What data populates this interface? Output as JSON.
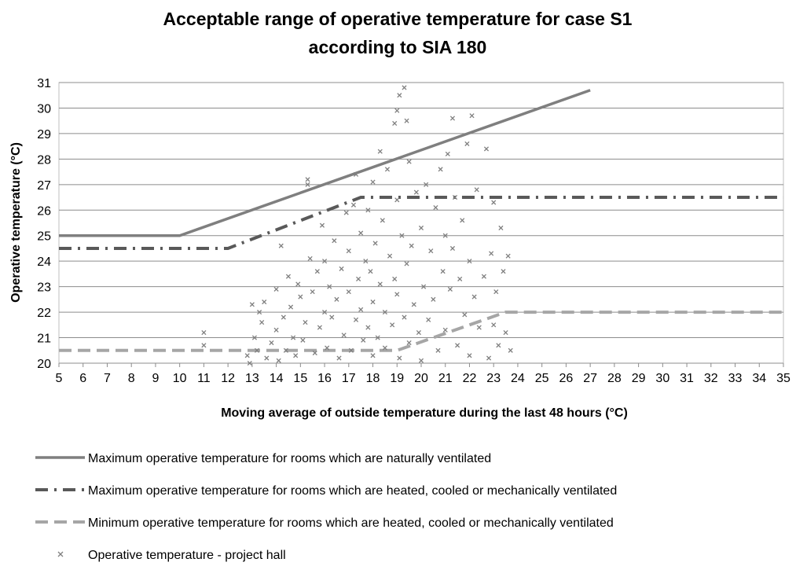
{
  "chart_data": {
    "type": "scatter",
    "title": [
      "Acceptable range of operative temperature for case S1",
      "according to SIA 180"
    ],
    "x_label": "Moving average of outside temperature during the last 48 hours (°C)",
    "y_label": "Operative temperature (°C)",
    "xlim": [
      5,
      35
    ],
    "ylim": [
      20,
      31
    ],
    "xticks": [
      5,
      6,
      7,
      8,
      9,
      10,
      11,
      12,
      13,
      14,
      15,
      16,
      17,
      18,
      19,
      20,
      21,
      22,
      23,
      24,
      25,
      26,
      27,
      28,
      29,
      30,
      31,
      32,
      33,
      34,
      35
    ],
    "yticks": [
      20,
      21,
      22,
      23,
      24,
      25,
      26,
      27,
      28,
      29,
      30,
      31
    ],
    "grid": true,
    "legend": "bottom",
    "series": [
      {
        "name": "Maximum operative temperature for rooms which are naturally ventilated",
        "color": "#7f7f7f",
        "style": "solid",
        "x": [
          5,
          10,
          27
        ],
        "values": [
          25,
          25,
          30.7
        ]
      },
      {
        "name": "Maximum operative temperature for rooms which are heated, cooled or mechanically ventilated",
        "color": "#595959",
        "style": "dashdot",
        "x": [
          5,
          12,
          17.5,
          35
        ],
        "values": [
          24.5,
          24.5,
          26.5,
          26.5
        ]
      },
      {
        "name": "Minimum operative temperature for rooms which are heated, cooled or mechanically ventilated",
        "color": "#a6a6a6",
        "style": "dashed",
        "x": [
          5,
          19,
          23.5,
          35
        ],
        "values": [
          20.5,
          20.5,
          22,
          22
        ]
      },
      {
        "name": "Operative temperature - project hall",
        "color": "#7f7f7f",
        "style": "markers",
        "x": [
          11,
          11,
          12.8,
          12.9,
          13,
          13.1,
          13.2,
          13.3,
          13.4,
          13.5,
          13.6,
          13.8,
          14,
          14,
          14.1,
          14.2,
          14.3,
          14.4,
          14.5,
          14.6,
          14.7,
          14.8,
          14.9,
          15,
          15.1,
          15.2,
          15.3,
          15.3,
          15.4,
          15.5,
          15.6,
          15.7,
          15.8,
          15.9,
          16,
          16,
          16.1,
          16.2,
          16.3,
          16.4,
          16.5,
          16.6,
          16.7,
          16.8,
          16.9,
          17,
          17,
          17.1,
          17.2,
          17.3,
          17.3,
          17.4,
          17.5,
          17.5,
          17.6,
          17.7,
          17.8,
          17.8,
          17.9,
          18,
          18,
          18,
          18.1,
          18.2,
          18.3,
          18.3,
          18.4,
          18.5,
          18.5,
          18.6,
          18.7,
          18.8,
          18.9,
          18.9,
          19,
          19,
          19,
          19.1,
          19.1,
          19.2,
          19.3,
          19.3,
          19.4,
          19.4,
          19.5,
          19.5,
          19.6,
          19.7,
          19.8,
          19.9,
          20,
          20,
          20.1,
          20.2,
          20.3,
          20.4,
          20.5,
          20.6,
          20.7,
          20.8,
          20.9,
          21,
          21,
          21.1,
          21.2,
          21.3,
          21.3,
          21.4,
          21.5,
          21.6,
          21.7,
          21.8,
          21.9,
          22,
          22,
          22.1,
          22.2,
          22.3,
          22.4,
          22.6,
          22.7,
          22.8,
          22.9,
          23,
          23,
          23.1,
          23.2,
          23.3,
          23.4,
          23.5,
          23.6,
          23.7
        ],
        "values": [
          21.2,
          20.7,
          20.3,
          20.0,
          22.3,
          21.0,
          20.5,
          22.0,
          21.6,
          22.4,
          20.2,
          20.8,
          21.3,
          22.9,
          20.1,
          24.6,
          21.8,
          20.5,
          23.4,
          22.2,
          21.0,
          20.3,
          23.1,
          22.6,
          20.9,
          21.6,
          27.2,
          27.0,
          24.1,
          22.8,
          20.4,
          23.6,
          21.4,
          25.4,
          22.0,
          24.0,
          20.6,
          23.0,
          21.8,
          24.8,
          22.5,
          20.2,
          23.7,
          21.1,
          25.9,
          22.8,
          24.4,
          20.5,
          26.2,
          27.4,
          21.7,
          23.3,
          25.1,
          22.1,
          20.9,
          24.0,
          26.0,
          21.4,
          23.6,
          27.1,
          22.4,
          20.3,
          24.7,
          21.0,
          28.3,
          23.1,
          25.6,
          22.0,
          20.6,
          27.6,
          24.2,
          21.5,
          29.4,
          23.3,
          29.9,
          26.4,
          22.7,
          30.5,
          20.2,
          25.0,
          30.8,
          21.8,
          29.5,
          23.9,
          27.9,
          20.8,
          24.6,
          22.3,
          26.7,
          21.2,
          25.3,
          20.1,
          23.0,
          27.0,
          21.7,
          24.4,
          22.5,
          26.1,
          20.5,
          27.6,
          23.6,
          25.0,
          21.3,
          28.2,
          22.9,
          29.6,
          24.5,
          26.5,
          20.7,
          23.3,
          25.6,
          21.9,
          28.6,
          24.0,
          20.3,
          29.7,
          22.6,
          26.8,
          21.4,
          23.4,
          28.4,
          20.2,
          24.3,
          21.5,
          26.3,
          22.8,
          20.7,
          25.3,
          23.6,
          21.2,
          24.2,
          20.5
        ]
      }
    ]
  }
}
